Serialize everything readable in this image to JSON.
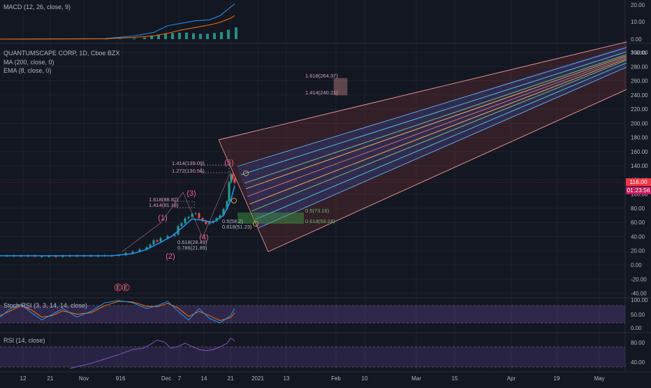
{
  "panes": {
    "macd": {
      "label": "MACD (12, 26, close, 9)",
      "ticks": [
        "20.00",
        "10.00",
        "0.00"
      ]
    },
    "main": {
      "title": "QUANTUMSCAPE CORP, 1D, Cboe BZX",
      "indicators": [
        "MA (200, close, 0)",
        "EMA (8, close, 0)"
      ],
      "log_label": "3 USD"
    },
    "stoch": {
      "label": "Stoch RSI (3, 3, 14, 14, close)",
      "ticks": [
        "100.00",
        "50.00",
        "0.00"
      ]
    },
    "rsi": {
      "label": "RSI (14, close)",
      "ticks": [
        "80.00",
        "40.00"
      ]
    }
  },
  "last_price": {
    "value": "116.00",
    "countdown": "01:23:56",
    "color": "#f23645"
  },
  "colors": {
    "up": "#26a69a",
    "down": "#ef5350",
    "ema": "#2196f3",
    "wave": "#f06292",
    "macd_line": "#2196f3",
    "signal_line": "#ff6d00",
    "stoch_k": "#2196f3",
    "stoch_d": "#ff6d00",
    "rsi_line": "#7e57c2",
    "band_fill": "#5d606b"
  },
  "chart_data": {
    "type": "candlestick",
    "title": "QUANTUMSCAPE CORP, 1D, Cboe BZX",
    "y_ticks": [
      "300.00",
      "280.00",
      "260.00",
      "240.00",
      "220.00",
      "200.00",
      "180.00",
      "160.00",
      "140.00",
      "120.00",
      "100.00",
      "80.00",
      "60.00",
      "40.00",
      "20.00",
      "0.00",
      "-20.00",
      "-40.00"
    ],
    "ylim": [
      -40,
      300
    ],
    "x_ticks": [
      "12",
      "21",
      "Nov",
      "9",
      "16",
      "Dec",
      "7",
      "14",
      "21",
      "2021",
      "13",
      "Feb",
      "10",
      "Mar",
      "15",
      "Apr",
      "19",
      "May"
    ],
    "price_path": [
      [
        0,
        13
      ],
      [
        10,
        13
      ],
      [
        20,
        13
      ],
      [
        30,
        12.5
      ],
      [
        40,
        13
      ],
      [
        50,
        12
      ],
      [
        60,
        12
      ],
      [
        70,
        12.5
      ],
      [
        80,
        12
      ],
      [
        90,
        12.5
      ],
      [
        100,
        13
      ],
      [
        110,
        12.5
      ],
      [
        120,
        13
      ],
      [
        130,
        12.5
      ],
      [
        140,
        13
      ],
      [
        150,
        13.5
      ],
      [
        160,
        13
      ],
      [
        170,
        14
      ],
      [
        180,
        17
      ],
      [
        190,
        19
      ],
      [
        200,
        22
      ],
      [
        210,
        25
      ],
      [
        215,
        29
      ],
      [
        220,
        35
      ],
      [
        225,
        33
      ],
      [
        230,
        38
      ],
      [
        240,
        41
      ],
      [
        250,
        43
      ],
      [
        255,
        55
      ],
      [
        260,
        59
      ],
      [
        265,
        66
      ],
      [
        270,
        68
      ],
      [
        275,
        72
      ],
      [
        280,
        73
      ],
      [
        285,
        66
      ],
      [
        290,
        62
      ],
      [
        295,
        58
      ],
      [
        300,
        60
      ],
      [
        305,
        62
      ],
      [
        310,
        66
      ],
      [
        315,
        70
      ],
      [
        320,
        79
      ],
      [
        325,
        90
      ],
      [
        328,
        117
      ],
      [
        331,
        128
      ],
      [
        333,
        122
      ],
      [
        336,
        116
      ]
    ],
    "ema_path": [
      [
        0,
        13
      ],
      [
        100,
        13
      ],
      [
        160,
        13
      ],
      [
        190,
        16
      ],
      [
        210,
        22
      ],
      [
        230,
        32
      ],
      [
        245,
        40
      ],
      [
        260,
        52
      ],
      [
        275,
        65
      ],
      [
        290,
        63
      ],
      [
        305,
        60
      ],
      [
        320,
        70
      ],
      [
        330,
        90
      ],
      [
        336,
        112
      ]
    ],
    "macd": {
      "ylim": [
        -2,
        24
      ],
      "macd_line": [
        [
          0,
          0
        ],
        [
          150,
          0.3
        ],
        [
          190,
          1.8
        ],
        [
          220,
          4
        ],
        [
          240,
          8
        ],
        [
          260,
          9.5
        ],
        [
          280,
          11
        ],
        [
          300,
          11.5
        ],
        [
          315,
          14
        ],
        [
          330,
          19
        ],
        [
          336,
          21
        ]
      ],
      "signal_line": [
        [
          0,
          0
        ],
        [
          150,
          0.2
        ],
        [
          190,
          1
        ],
        [
          220,
          2
        ],
        [
          240,
          3.5
        ],
        [
          260,
          5.5
        ],
        [
          280,
          7
        ],
        [
          300,
          8.5
        ],
        [
          315,
          10
        ],
        [
          330,
          12.5
        ],
        [
          336,
          14
        ]
      ],
      "histogram": [
        [
          150,
          0.1
        ],
        [
          170,
          0.2
        ],
        [
          190,
          0.5
        ],
        [
          205,
          1
        ],
        [
          215,
          1.8
        ],
        [
          225,
          2.5
        ],
        [
          235,
          3.2
        ],
        [
          245,
          3.6
        ],
        [
          255,
          3.8
        ],
        [
          265,
          3.9
        ],
        [
          275,
          3.5
        ],
        [
          285,
          3.2
        ],
        [
          295,
          3.2
        ],
        [
          305,
          3.6
        ],
        [
          315,
          4.2
        ],
        [
          325,
          5.6
        ],
        [
          336,
          7
        ]
      ]
    },
    "fib_levels": [
      {
        "label": "1.618(264.37)",
        "value": 264.37
      },
      {
        "label": "1.414(240.21)",
        "value": 240.21
      },
      {
        "label": "1.414(139.09)",
        "value": 139.09
      },
      {
        "label": "1.272(130.56)",
        "value": 130.56
      },
      {
        "label": "1.618(88.82)",
        "value": 88.82
      },
      {
        "label": "1.414(81.18)",
        "value": 81.18
      },
      {
        "label": "0.5(73.16)",
        "value": 73.16
      },
      {
        "label": "0.618(59.24)",
        "value": 59.24
      },
      {
        "label": "0.5(58.2)",
        "value": 58.2
      },
      {
        "label": "0.618(51.23)",
        "value": 51.23
      },
      {
        "label": "0.618(28.49)",
        "value": 28.49
      },
      {
        "label": "0.786(21.89)",
        "value": 21.89
      }
    ],
    "waves": [
      {
        "label": "(1)",
        "value": 47
      },
      {
        "label": "(2)",
        "value": 11
      },
      {
        "label": "(3)",
        "value": 100
      },
      {
        "label": "(4)",
        "value": 40
      },
      {
        "label": "(5)",
        "value": 142
      }
    ],
    "stoch_rsi": {
      "ylim": [
        -5,
        105
      ],
      "k": [
        [
          0,
          40
        ],
        [
          15,
          70
        ],
        [
          30,
          85
        ],
        [
          45,
          55
        ],
        [
          60,
          30
        ],
        [
          75,
          50
        ],
        [
          90,
          70
        ],
        [
          110,
          40
        ],
        [
          130,
          60
        ],
        [
          150,
          90
        ],
        [
          170,
          98
        ],
        [
          190,
          90
        ],
        [
          210,
          70
        ],
        [
          225,
          80
        ],
        [
          240,
          95
        ],
        [
          255,
          60
        ],
        [
          270,
          30
        ],
        [
          285,
          70
        ],
        [
          300,
          35
        ],
        [
          315,
          20
        ],
        [
          330,
          45
        ],
        [
          336,
          70
        ]
      ],
      "d": [
        [
          0,
          45
        ],
        [
          15,
          62
        ],
        [
          30,
          80
        ],
        [
          45,
          65
        ],
        [
          60,
          40
        ],
        [
          75,
          45
        ],
        [
          90,
          62
        ],
        [
          110,
          50
        ],
        [
          130,
          55
        ],
        [
          150,
          80
        ],
        [
          170,
          95
        ],
        [
          190,
          93
        ],
        [
          210,
          78
        ],
        [
          225,
          76
        ],
        [
          240,
          88
        ],
        [
          255,
          72
        ],
        [
          270,
          42
        ],
        [
          285,
          60
        ],
        [
          300,
          45
        ],
        [
          315,
          28
        ],
        [
          330,
          38
        ],
        [
          336,
          55
        ]
      ]
    },
    "rsi": {
      "ylim": [
        25,
        95
      ],
      "values": [
        [
          100,
          40
        ],
        [
          130,
          48
        ],
        [
          150,
          55
        ],
        [
          170,
          62
        ],
        [
          190,
          70
        ],
        [
          205,
          72
        ],
        [
          215,
          78
        ],
        [
          225,
          85
        ],
        [
          235,
          82
        ],
        [
          245,
          72
        ],
        [
          255,
          75
        ],
        [
          265,
          80
        ],
        [
          275,
          75
        ],
        [
          285,
          70
        ],
        [
          295,
          68
        ],
        [
          305,
          70
        ],
        [
          315,
          74
        ],
        [
          325,
          80
        ],
        [
          330,
          88
        ],
        [
          336,
          84
        ]
      ]
    },
    "events": [
      "E",
      "E"
    ]
  }
}
